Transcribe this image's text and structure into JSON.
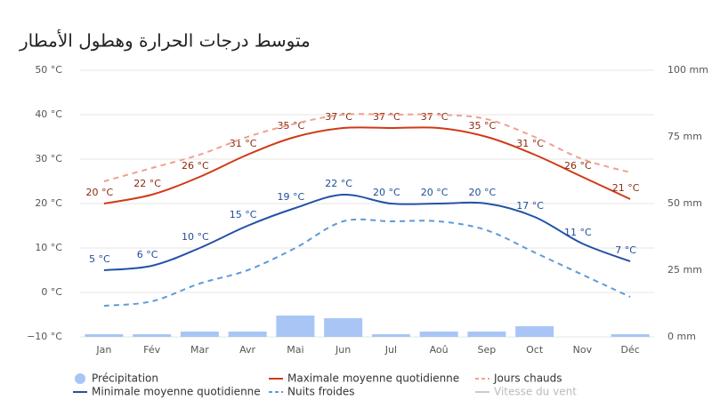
{
  "chart_data": {
    "type": "combo",
    "title": "متوسط درجات الحرارة وهطول الأمطار",
    "categories": [
      "Jan",
      "Fév",
      "Mar",
      "Avr",
      "Mai",
      "Jun",
      "Jul",
      "Aoû",
      "Sep",
      "Oct",
      "Nov",
      "Déc"
    ],
    "ylim": [
      -10,
      50
    ],
    "yticks": [
      {
        "value": -10,
        "label": "−10 °C"
      },
      {
        "value": 0,
        "label": "0 °C"
      },
      {
        "value": 10,
        "label": "10 °C"
      },
      {
        "value": 20,
        "label": "20 °C"
      },
      {
        "value": 30,
        "label": "30 °C"
      },
      {
        "value": 40,
        "label": "40 °C"
      },
      {
        "value": 50,
        "label": "50 °C"
      }
    ],
    "y2lim": [
      0,
      100
    ],
    "y2ticks": [
      {
        "value": 0,
        "label": "0 mm"
      },
      {
        "value": 25,
        "label": "25 mm"
      },
      {
        "value": 50,
        "label": "50 mm"
      },
      {
        "value": 75,
        "label": "75 mm"
      },
      {
        "value": 100,
        "label": "100 mm"
      }
    ],
    "grid": true,
    "series": [
      {
        "name": "Précipitation",
        "type": "bar",
        "axis": "y2",
        "color": "#a9c5f6",
        "values": [
          1,
          1,
          2,
          2,
          8,
          7,
          1,
          2,
          2,
          4,
          0,
          1
        ]
      },
      {
        "name": "Maximale moyenne quotidienne",
        "type": "line",
        "color": "#cf3a16",
        "label_color": "#8a2a0e",
        "values": [
          20,
          22,
          26,
          31,
          35,
          37,
          37,
          37,
          35,
          31,
          26,
          21
        ],
        "value_labels": [
          "20 °C",
          "22 °C",
          "26 °C",
          "31 °C",
          "35 °C",
          "37 °C",
          "37 °C",
          "37 °C",
          "35 °C",
          "31 °C",
          "26 °C",
          "21 °C"
        ]
      },
      {
        "name": "Jours chauds",
        "type": "line",
        "dashed": true,
        "color": "#f0a08e",
        "values": [
          25,
          28,
          31,
          35,
          38,
          40,
          40,
          40,
          39,
          35,
          30,
          27
        ]
      },
      {
        "name": "Minimale moyenne quotidienne",
        "type": "line",
        "color": "#2352a8",
        "label_color": "#1f4c99",
        "values": [
          5,
          6,
          10,
          15,
          19,
          22,
          20,
          20,
          20,
          17,
          11,
          7
        ],
        "value_labels": [
          "5 °C",
          "6 °C",
          "10 °C",
          "15 °C",
          "19 °C",
          "22 °C",
          "20 °C",
          "20 °C",
          "20 °C",
          "17 °C",
          "11 °C",
          "7 °C"
        ]
      },
      {
        "name": "Nuits froides",
        "type": "line",
        "dashed": true,
        "color": "#5e9bd8",
        "values": [
          -3,
          -2,
          2,
          5,
          10,
          16,
          16,
          16,
          14,
          9,
          4,
          -1
        ]
      },
      {
        "name": "Vitesse du vent",
        "type": "line",
        "hidden": true,
        "color": "#cccccc",
        "values": [
          null,
          null,
          null,
          null,
          null,
          null,
          null,
          null,
          null,
          null,
          null,
          null
        ]
      }
    ]
  }
}
